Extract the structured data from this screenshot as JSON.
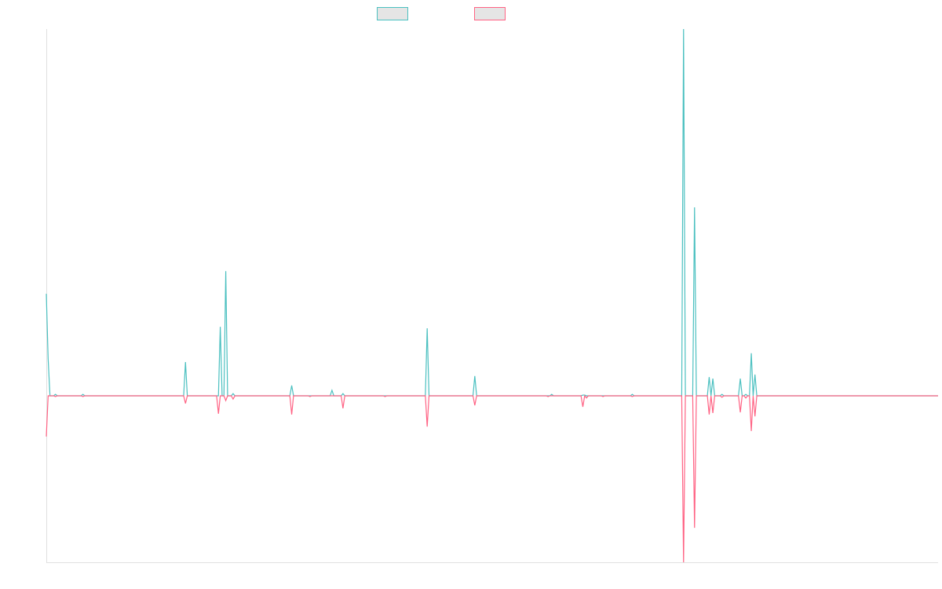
{
  "chart_data": {
    "type": "line",
    "title": "",
    "xlabel": "",
    "ylabel": "",
    "x_range": [
      0,
      487
    ],
    "ylim": [
      -45.4,
      100
    ],
    "grid": false,
    "legend": "top-center",
    "baseline_value": 0,
    "series": [
      {
        "color": "#4bc0c0",
        "legend_fill": "#e5e5e5",
        "points": [
          [
            0,
            27.8
          ],
          [
            1,
            10
          ],
          [
            5,
            0.4
          ],
          [
            20,
            0.4
          ],
          [
            76,
            9.2
          ],
          [
            95,
            18.8
          ],
          [
            98,
            34
          ],
          [
            102,
            0.6
          ],
          [
            134,
            2.8
          ],
          [
            156,
            1.5
          ],
          [
            162,
            0.6
          ],
          [
            208,
            18.4
          ],
          [
            234,
            5.4
          ],
          [
            276,
            0.4
          ],
          [
            293,
            0.2
          ],
          [
            294,
            0.2
          ],
          [
            320,
            0.4
          ],
          [
            348,
            100
          ],
          [
            354,
            51.4
          ],
          [
            362,
            5.1
          ],
          [
            364,
            4.7
          ],
          [
            369,
            0.4
          ],
          [
            379,
            4.7
          ],
          [
            382,
            0.4
          ],
          [
            385,
            11.6
          ],
          [
            387,
            5.8
          ]
        ]
      },
      {
        "color": "#ff6384",
        "legend_fill": "#e5e5e5",
        "points": [
          [
            0,
            -11.1
          ],
          [
            5,
            -0.2
          ],
          [
            20,
            -0.2
          ],
          [
            76,
            -2.1
          ],
          [
            94,
            -4.9
          ],
          [
            98,
            -1.3
          ],
          [
            102,
            -0.9
          ],
          [
            134,
            -5.1
          ],
          [
            144,
            -0.2
          ],
          [
            162,
            -3.4
          ],
          [
            185,
            -0.2
          ],
          [
            208,
            -8.4
          ],
          [
            234,
            -2.6
          ],
          [
            274,
            -0.2
          ],
          [
            293,
            -3
          ],
          [
            295,
            -0.6
          ],
          [
            304,
            -0.2
          ],
          [
            320,
            -0.2
          ],
          [
            348,
            -45.4
          ],
          [
            354,
            -36
          ],
          [
            362,
            -5.1
          ],
          [
            364,
            -4.7
          ],
          [
            369,
            -0.4
          ],
          [
            379,
            -4.5
          ],
          [
            382,
            -0.6
          ],
          [
            385,
            -9.6
          ],
          [
            387,
            -5.6
          ]
        ]
      }
    ]
  }
}
